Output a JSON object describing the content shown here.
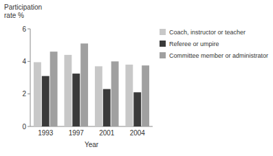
{
  "chart_data": {
    "type": "bar",
    "categories": [
      "1993",
      "1997",
      "2001",
      "2004"
    ],
    "series": [
      {
        "name": "Coach, instructor or teacher",
        "color": "#c8c8c8",
        "values": [
          3.95,
          4.4,
          3.7,
          3.8
        ]
      },
      {
        "name": "Referee or umpire",
        "color": "#3a3a3a",
        "values": [
          3.1,
          3.25,
          2.3,
          2.1
        ]
      },
      {
        "name": "Committee member or administrator",
        "color": "#a0a0a0",
        "values": [
          4.6,
          5.1,
          4.0,
          3.75
        ]
      }
    ],
    "xlabel": "Year",
    "ylabel": "Participation\nrate %",
    "ylim": [
      0,
      6
    ],
    "yticks": [
      0,
      2,
      4,
      6
    ],
    "grid": false,
    "legend": "upper right"
  }
}
